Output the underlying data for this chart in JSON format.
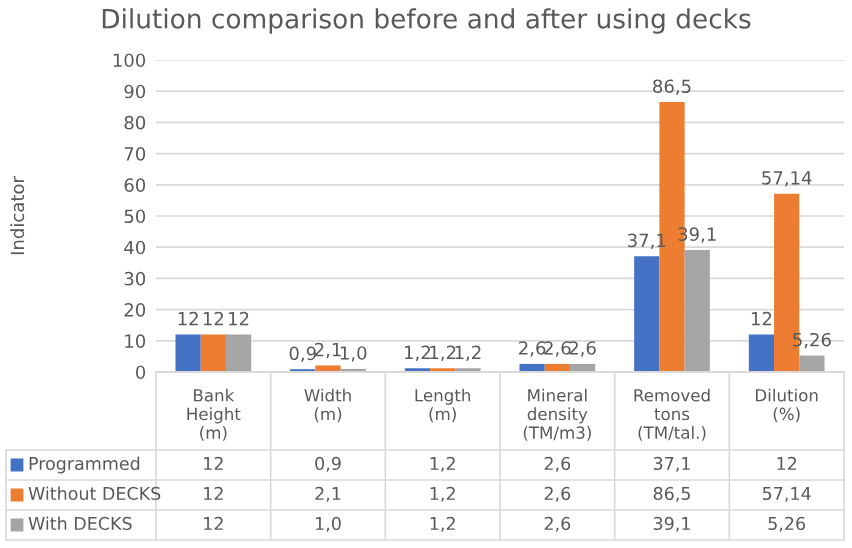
{
  "chart_data": {
    "type": "bar",
    "title": "Dilution comparison before and after using decks",
    "ylabel": "Indicator",
    "categories": [
      "Bank Height (m)",
      "Width (m)",
      "Length (m)",
      "Mineral density (TM/m3)",
      "Removed tons (TM/tal.)",
      "Dilution (%)"
    ],
    "series": [
      {
        "name": "Programmed",
        "color": "#4472c4",
        "values": [
          12,
          0.9,
          1.2,
          2.6,
          37.1,
          12
        ],
        "value_labels": [
          "12",
          "0,9",
          "1,2",
          "2,6",
          "37,1",
          "12"
        ]
      },
      {
        "name": "Without DECKS",
        "color": "#ed7d31",
        "values": [
          12,
          2.1,
          1.2,
          2.6,
          86.5,
          57.14
        ],
        "value_labels": [
          "12",
          "2,1",
          "1,2",
          "2,6",
          "86,5",
          "57,14"
        ]
      },
      {
        "name": "With DECKS",
        "color": "#a5a5a5",
        "values": [
          12,
          1.0,
          1.2,
          2.6,
          39.1,
          5.26
        ],
        "value_labels": [
          "12",
          "1,0",
          "1,2",
          "2,6",
          "39,1",
          "5,26"
        ]
      }
    ],
    "ylim": [
      0,
      100
    ],
    "yticks": [
      0,
      10,
      20,
      30,
      40,
      50,
      60,
      70,
      80,
      90,
      100
    ],
    "grid": "y",
    "legend": "bottom"
  }
}
